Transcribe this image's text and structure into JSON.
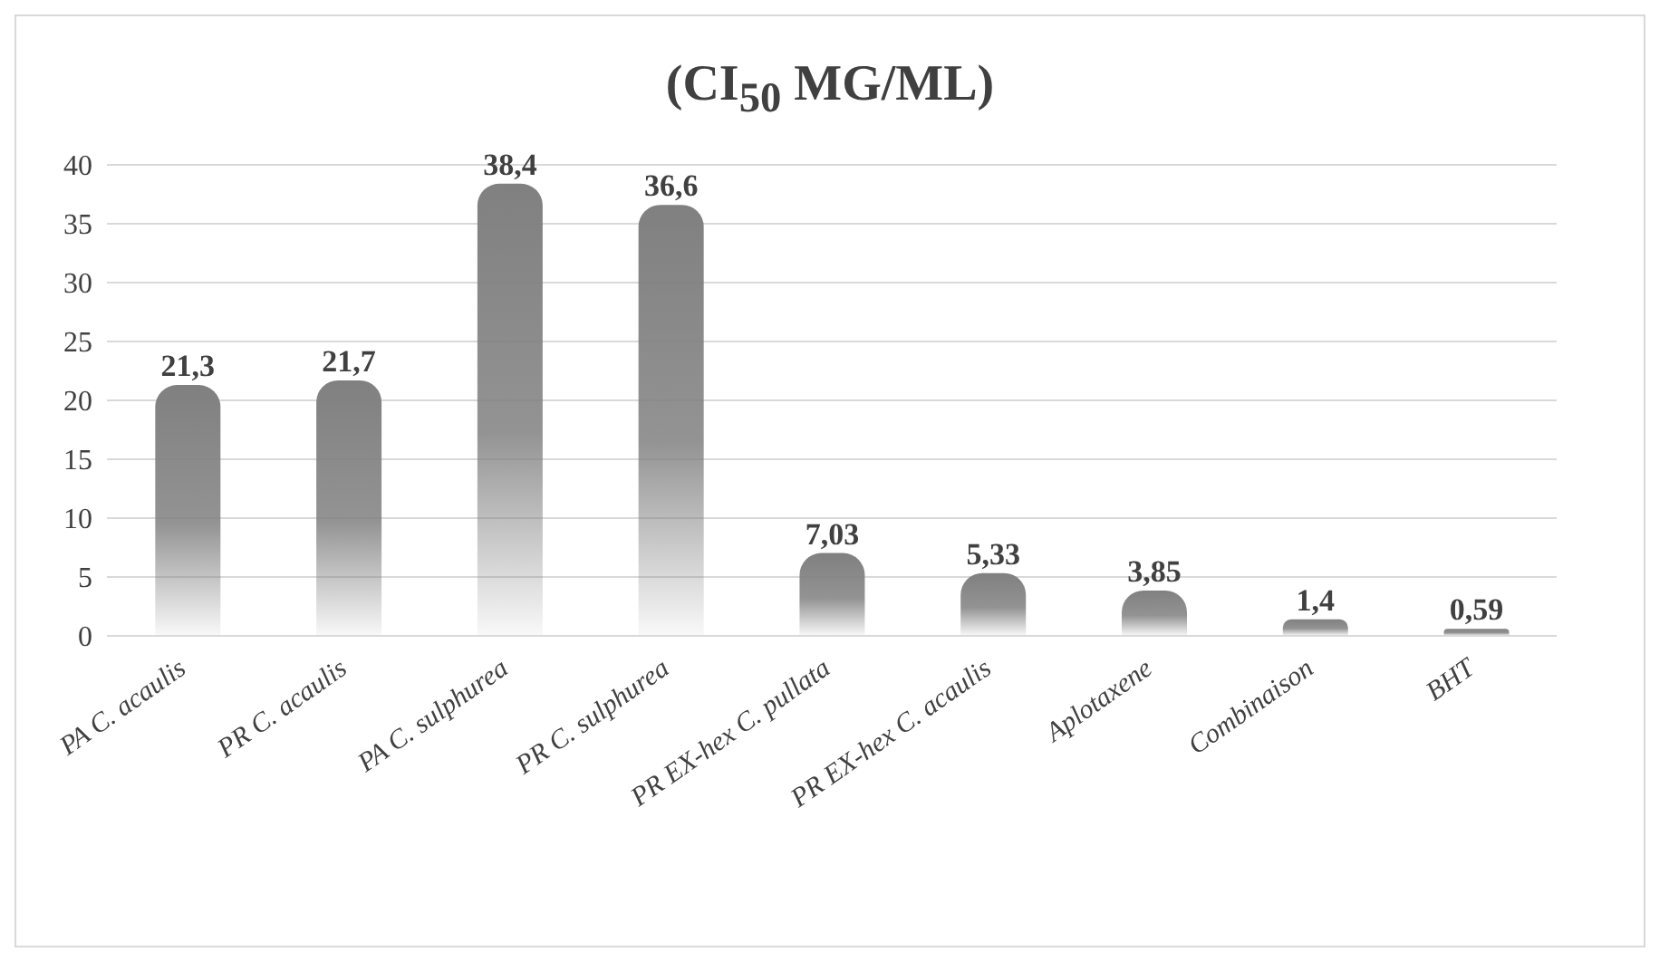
{
  "chart_data": {
    "type": "bar",
    "title": "(CI$_{50}$ MG/ML)",
    "categories": [
      "PA C. acaulis",
      "PR C. acaulis",
      "PA C. sulphurea",
      "PR C. sulphurea",
      "PR EX-hex C. pullata",
      "PR EX-hex C. acaulis",
      "Aplotaxene",
      "Combinaison",
      "BHT"
    ],
    "values": [
      21.3,
      21.7,
      38.4,
      36.6,
      7.03,
      5.33,
      3.85,
      1.4,
      0.59
    ],
    "value_labels": [
      "21,3",
      "21,7",
      "38,4",
      "36,6",
      "7,03",
      "5,33",
      "3,85",
      "1,4",
      "0,59"
    ],
    "color": "#808080",
    "ylim": [
      0,
      40
    ],
    "yticks": [
      0,
      5,
      10,
      15,
      20,
      25,
      30,
      35,
      40
    ],
    "grid": "y"
  }
}
